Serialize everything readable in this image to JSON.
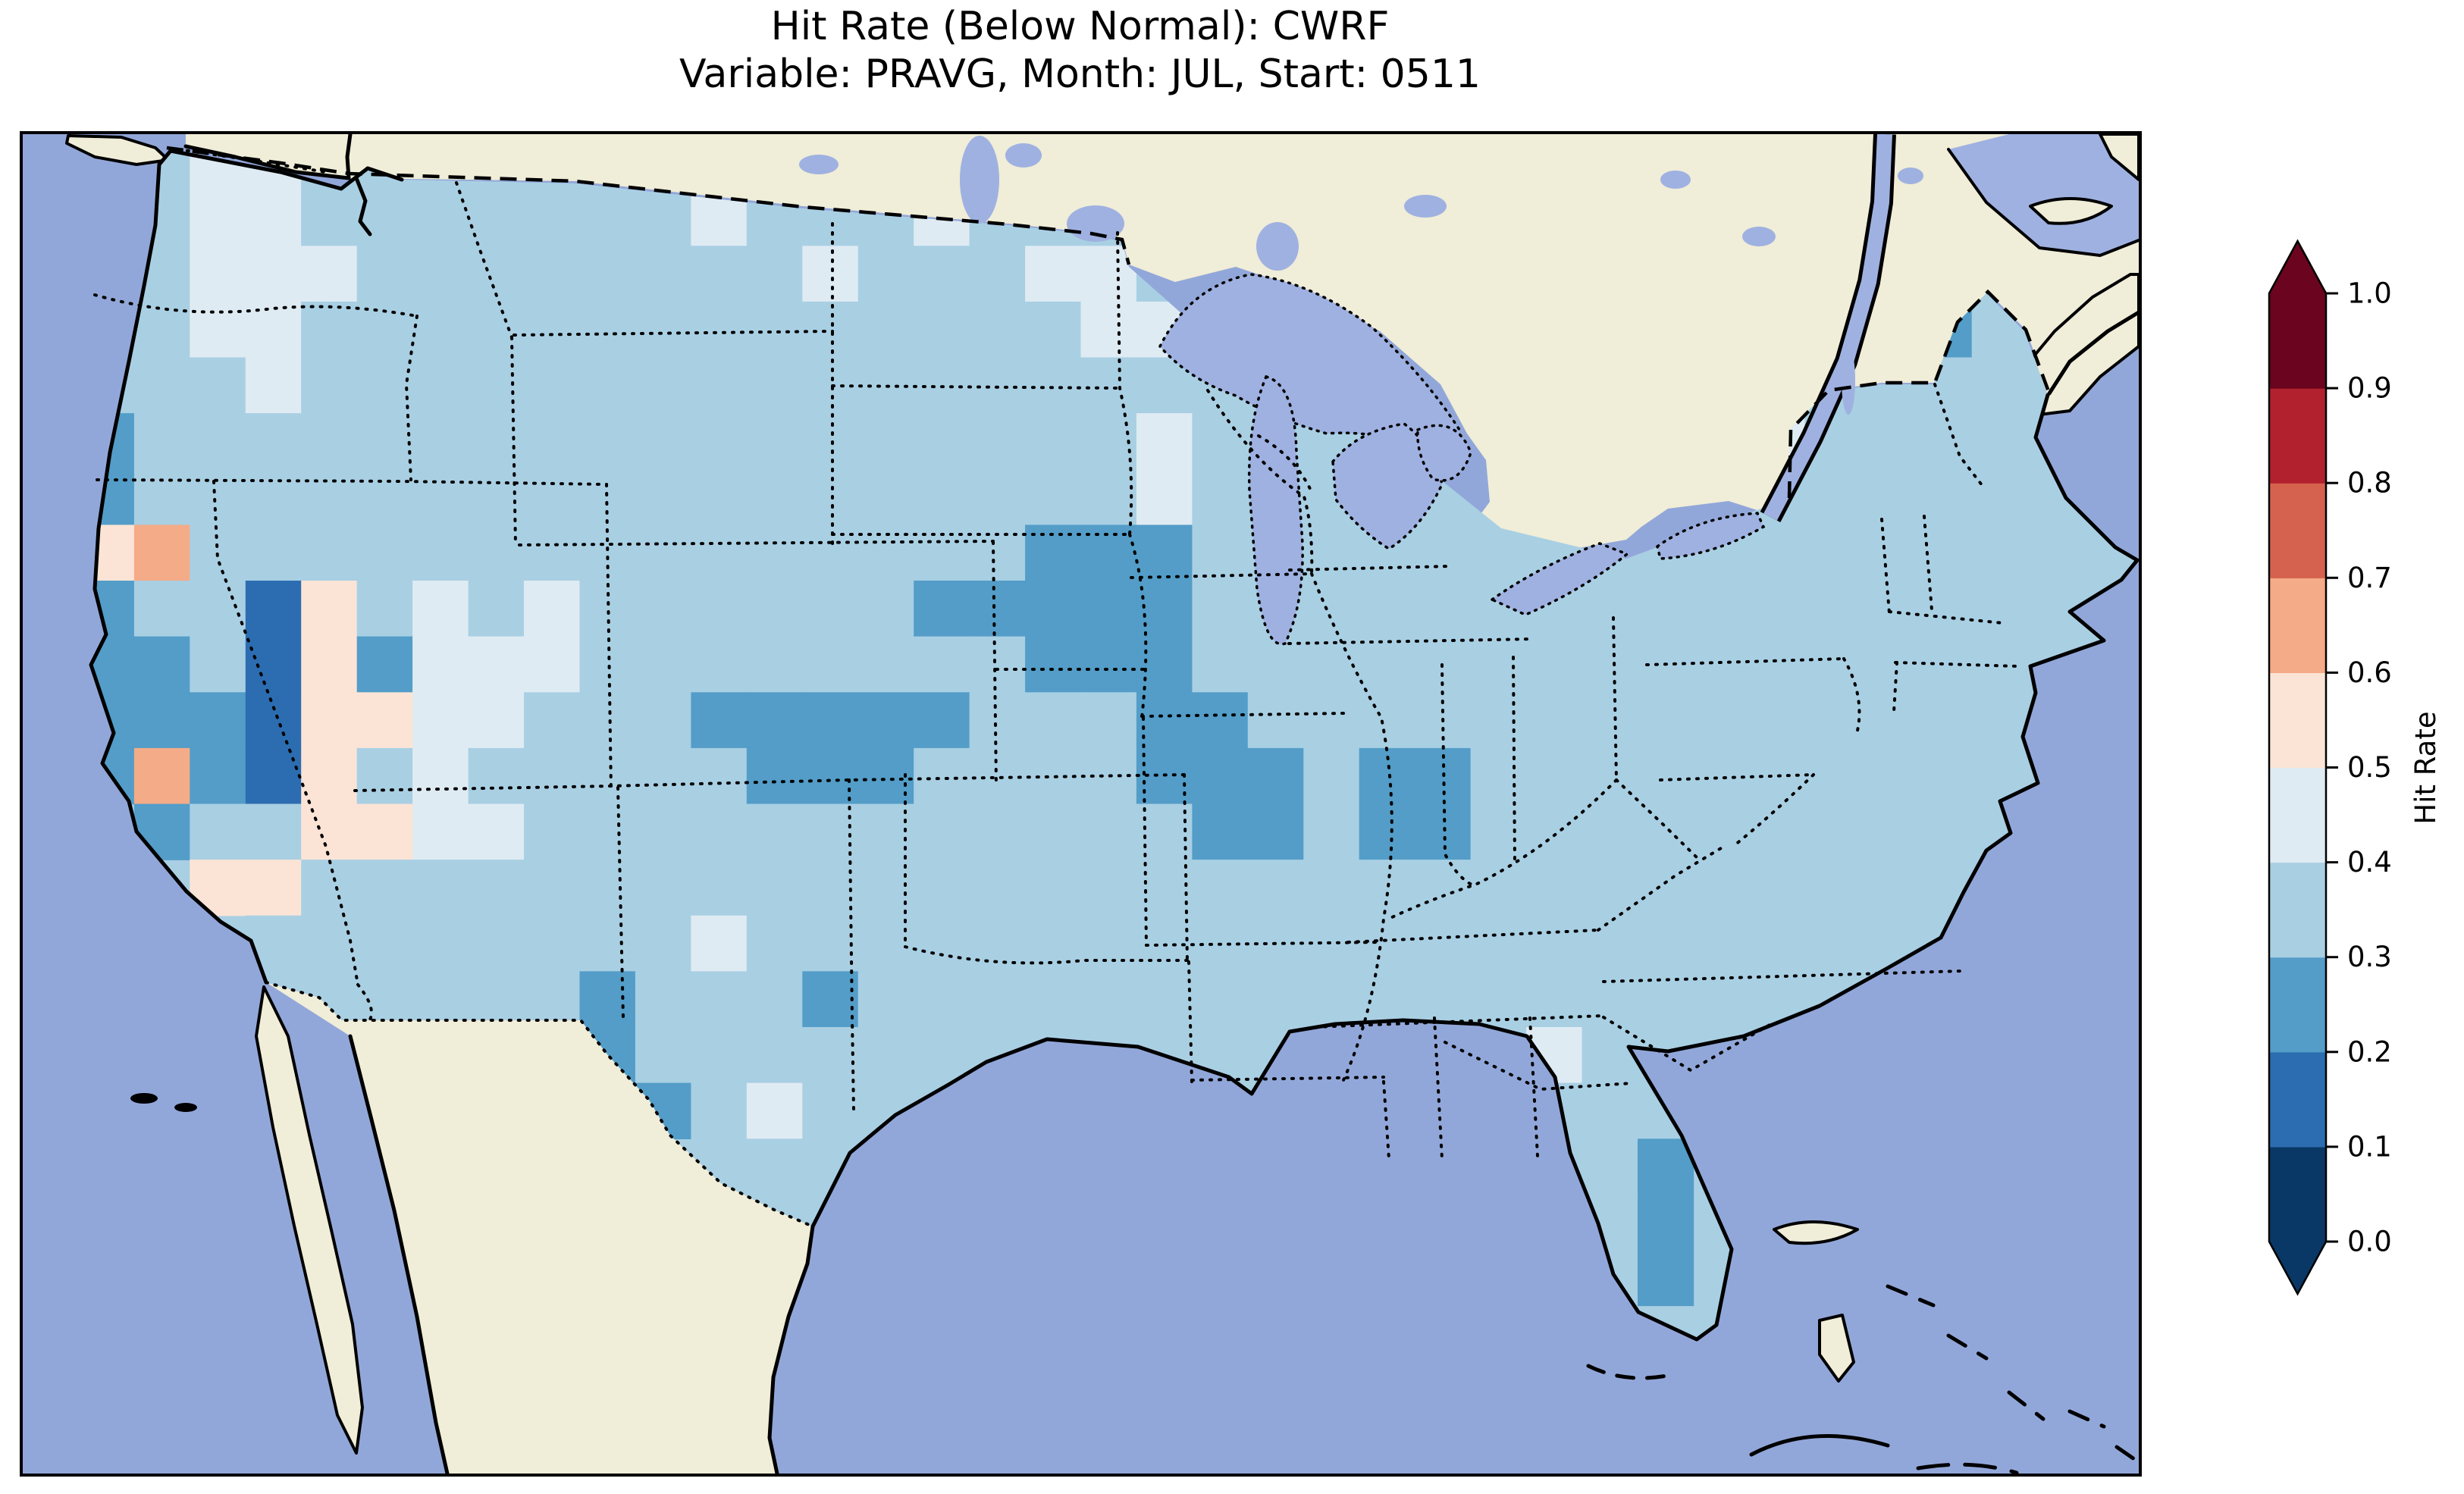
{
  "figure": {
    "title_line1": "Hit Rate (Below Normal): CWRF",
    "title_line2": "Variable: PRAVG, Month: JUL, Start: 0511"
  },
  "colorbar": {
    "label": "Hit Rate",
    "orientation": "vertical",
    "extend": "both",
    "tick_labels_top_to_bottom": [
      "1.0",
      "0.9",
      "0.8",
      "0.7",
      "0.6",
      "0.5",
      "0.4",
      "0.3",
      "0.2",
      "0.1",
      "0.0"
    ],
    "bin_colors_low_to_high": [
      "#0a3866",
      "#2c6db1",
      "#539dc8",
      "#a9cfe3",
      "#dfebf3",
      "#fbe4d6",
      "#f4ab87",
      "#d5624e",
      "#b2212e",
      "#6a041f"
    ]
  },
  "chart_data": {
    "type": "heatmap",
    "title": "Hit Rate (Below Normal): CWRF",
    "subtitle": "Variable: PRAVG, Month: JUL, Start: 0511",
    "model": "CWRF",
    "variable": "PRAVG",
    "month": "JUL",
    "start": "0511",
    "metric": "Hit Rate (Below Normal)",
    "region": "Contiguous United States, gridded field over a North America map",
    "colorbar_label": "Hit Rate",
    "value_range": [
      0.0,
      1.0
    ],
    "bin_width": 0.1,
    "colormap": "RdBu reversed, 10 discrete bins, extend arrows both ends",
    "summary": [
      "Most of CONUS in 0.3-0.4 bin (light blue)",
      "0.2-0.3 patches over Iowa/Illinois/Indiana, Kansas-Nebraska, Rio Grande Texas, Florida east coast, coastal California, one cell in Maine",
      "0.1-0.2 vertical strip in California Central Valley",
      "0.4-0.5 very light patches in western Washington/Oregon, Utah/Nevada, Minnesota, scattered",
      "0.5-0.7 pink/orange cells in northeastern and eastern California / western Nevada"
    ],
    "grid": {
      "rows": 24,
      "cols": 38,
      "legend": {
        ".": "outside data domain",
        "0": "0.0-0.1",
        "1": "0.1-0.2",
        "2": "0.2-0.3",
        "3": "0.3-0.4",
        "4": "0.4-0.5",
        "5": "0.5-0.6",
        "6": "0.6-0.7",
        "7": "0.7-0.8",
        "8": "0.8-0.9",
        "9": "0.9-1.0"
      },
      "palette": {
        "0": "#0a3866",
        "1": "#2c6db1",
        "2": "#539dc8",
        "3": "#a9cfe3",
        "4": "#dfebf3",
        "5": "#fbe4d6",
        "6": "#f4ab87",
        "7": "#d5624e",
        "8": "#b2212e",
        "9": "#6a041f"
      },
      "cells": [
        "..344333333333........................",
        ".3344333333343334333..................",
        ".33444333333334333443.................",
        ".334433333333333333443...........3233.",
        ".333433333333333333333.333.....333333.",
        ".233333333333333333343.333....3433333.",
        ".23333333333333333334333333..33333333.",
        ".563333333333333332223333333..33333333.",
        ".2331534343333332222233333333333333333.",
        ".2231524443333333322233333333333333333.",
        ".2221554433322222333223333333333333333..",
        ".262153433333222333322232233333333333..",
        "..233554433333333333322322333333333...",
        "...5533333333333333333333333333333333....",
        "....3333333343333333333333333333......",
        "....3333332333233333333333333333......",
        "..........23333333333......433........",
        "...........23433...........333........",
        "............333............332........",
        ".............33.............32........",
        "............................32........",
        ".............................3........",
        "............................44........",
        "......................................"
      ]
    },
    "map_colors": {
      "ocean": "#92a7d9",
      "lakes": "#9fb1e1",
      "land_other": "#f0edd8",
      "us_base": "#a9cfe3",
      "coastline": "#000000"
    }
  }
}
